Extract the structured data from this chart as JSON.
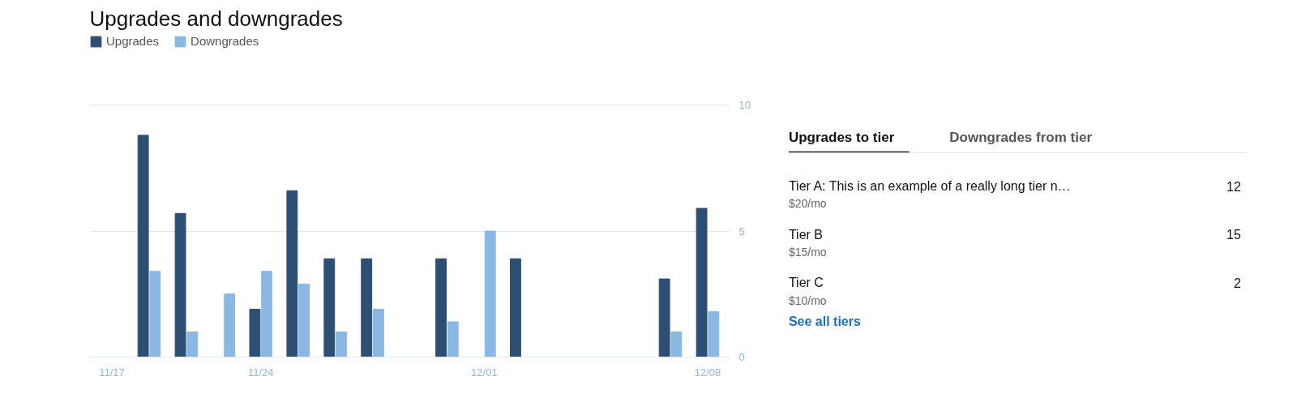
{
  "chart_data": [
    {
      "type": "bar",
      "title": "Upgrades and downgrades",
      "categories": [
        "11/17",
        null,
        null,
        null,
        "11/24",
        null,
        null,
        null,
        null,
        null,
        "12/01",
        null,
        null,
        null,
        null,
        null,
        "12/08"
      ],
      "series": [
        {
          "name": "Upgrades",
          "color": "#2c4f73",
          "values": [
            0,
            8.8,
            5.7,
            0,
            1.9,
            6.6,
            3.9,
            3.9,
            0,
            3.9,
            0,
            3.9,
            0,
            0,
            0,
            3.1,
            5.9
          ]
        },
        {
          "name": "Downgrades",
          "color": "#8bb8e3",
          "values": [
            0,
            3.4,
            1.0,
            2.5,
            3.4,
            2.9,
            1.0,
            1.9,
            0,
            1.4,
            5.0,
            0,
            0,
            0,
            0,
            1.0,
            1.8
          ]
        }
      ],
      "ylim": [
        0,
        10
      ],
      "yticks": [
        0,
        5,
        10
      ],
      "grid": "y",
      "legend": "top left"
    },
    {
      "type": "other",
      "categories": [
        "Tier A: This is an example of a really long tier n…",
        "Tier B",
        "Tier C"
      ],
      "values": [
        12,
        15,
        2
      ],
      "data_labels": true,
      "annotations": [
        "Upgrades to tier",
        "Downgrades from tier",
        "$20/mo",
        "$15/mo",
        "$10/mo",
        "See all tiers"
      ]
    }
  ]
}
